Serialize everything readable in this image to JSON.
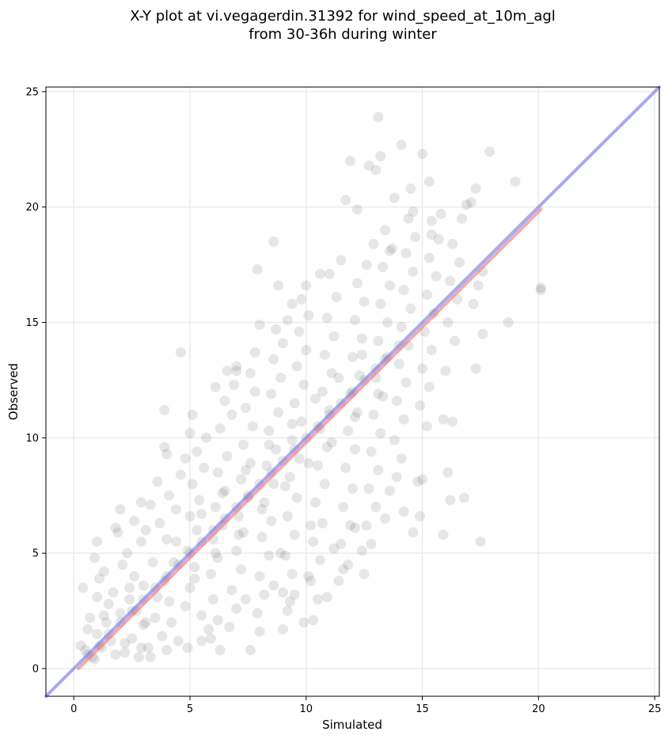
{
  "chart_data": {
    "type": "scatter",
    "title_line1": "X-Y plot at vi.vegagerdin.31392 for wind_speed_at_10m_agl",
    "title_line2": "from 30-36h during winter",
    "xlabel": "Simulated",
    "ylabel": "Observed",
    "xlim": [
      -1.2,
      25.2
    ],
    "ylim": [
      -1.2,
      25.2
    ],
    "xticks": [
      0,
      5,
      10,
      15,
      20,
      25
    ],
    "yticks": [
      0,
      5,
      10,
      15,
      20,
      25
    ],
    "grid": true,
    "point_color": "#555555",
    "identity_line": {
      "x": [
        -1.2,
        25.2
      ],
      "y": [
        -1.2,
        25.2
      ],
      "color": "#6e6ef0"
    },
    "fit_line": {
      "x": [
        0.2,
        20.1
      ],
      "y": [
        0.0,
        19.9
      ],
      "color": "#f07070"
    },
    "points": [
      [
        0.5,
        0.8
      ],
      [
        0.8,
        0.5
      ],
      [
        1.0,
        1.5
      ],
      [
        1.2,
        0.9
      ],
      [
        1.4,
        2.0
      ],
      [
        1.6,
        1.2
      ],
      [
        1.8,
        0.6
      ],
      [
        2.0,
        2.4
      ],
      [
        0.6,
        1.7
      ],
      [
        1.0,
        3.1
      ],
      [
        1.1,
        3.9
      ],
      [
        0.9,
        4.8
      ],
      [
        1.0,
        5.5
      ],
      [
        1.5,
        2.8
      ],
      [
        1.3,
        4.2
      ],
      [
        0.4,
        3.5
      ],
      [
        0.7,
        2.2
      ],
      [
        0.3,
        1.0
      ],
      [
        0.9,
        0.4
      ],
      [
        1.7,
        3.3
      ],
      [
        2.2,
        0.7
      ],
      [
        2.5,
        1.3
      ],
      [
        2.8,
        0.5
      ],
      [
        3.0,
        1.9
      ],
      [
        2.4,
        3.0
      ],
      [
        2.7,
        2.5
      ],
      [
        3.2,
        0.9
      ],
      [
        2.1,
        4.5
      ],
      [
        2.6,
        4.0
      ],
      [
        3.0,
        3.6
      ],
      [
        2.3,
        5.0
      ],
      [
        2.9,
        5.5
      ],
      [
        1.9,
        5.9
      ],
      [
        1.8,
        6.1
      ],
      [
        2.6,
        6.4
      ],
      [
        3.3,
        7.1
      ],
      [
        2.9,
        7.2
      ],
      [
        3.5,
        2.2
      ],
      [
        3.6,
        3.1
      ],
      [
        3.8,
        1.4
      ],
      [
        4.0,
        0.8
      ],
      [
        4.2,
        2.0
      ],
      [
        3.9,
        3.8
      ],
      [
        4.3,
        4.6
      ],
      [
        4.0,
        5.6
      ],
      [
        3.7,
        6.3
      ],
      [
        4.4,
        6.9
      ],
      [
        4.1,
        7.5
      ],
      [
        3.6,
        8.1
      ],
      [
        4.6,
        8.4
      ],
      [
        4.8,
        9.1
      ],
      [
        3.9,
        9.6
      ],
      [
        4.6,
        13.7
      ],
      [
        3.9,
        11.2
      ],
      [
        4.5,
        1.2
      ],
      [
        4.8,
        2.7
      ],
      [
        5.0,
        3.5
      ],
      [
        5.2,
        4.4
      ],
      [
        4.9,
        5.1
      ],
      [
        5.3,
        6.0
      ],
      [
        5.0,
        6.6
      ],
      [
        5.4,
        7.3
      ],
      [
        5.1,
        8.0
      ],
      [
        5.6,
        8.7
      ],
      [
        5.3,
        9.4
      ],
      [
        5.0,
        10.2
      ],
      [
        5.7,
        10.0
      ],
      [
        5.8,
        1.7
      ],
      [
        5.5,
        2.3
      ],
      [
        6.0,
        3.0
      ],
      [
        5.9,
        4.1
      ],
      [
        6.2,
        4.8
      ],
      [
        6.0,
        5.6
      ],
      [
        6.4,
        6.2
      ],
      [
        6.1,
        7.0
      ],
      [
        6.5,
        7.7
      ],
      [
        6.2,
        8.5
      ],
      [
        6.6,
        9.2
      ],
      [
        6.3,
        10.4
      ],
      [
        6.8,
        11.0
      ],
      [
        6.5,
        11.6
      ],
      [
        6.9,
        12.3
      ],
      [
        6.6,
        12.9
      ],
      [
        7.0,
        13.1
      ],
      [
        6.3,
        0.8
      ],
      [
        6.7,
        1.8
      ],
      [
        7.0,
        2.6
      ],
      [
        6.8,
        3.4
      ],
      [
        7.2,
        4.3
      ],
      [
        7.0,
        5.1
      ],
      [
        7.3,
        5.9
      ],
      [
        7.1,
        6.6
      ],
      [
        7.5,
        7.4
      ],
      [
        7.2,
        8.2
      ],
      [
        7.6,
        8.9
      ],
      [
        7.3,
        9.7
      ],
      [
        7.7,
        10.5
      ],
      [
        7.4,
        11.3
      ],
      [
        7.8,
        12.0
      ],
      [
        7.6,
        12.8
      ],
      [
        7.9,
        17.3
      ],
      [
        7.8,
        13.7
      ],
      [
        7.6,
        0.8
      ],
      [
        8.0,
        1.6
      ],
      [
        7.9,
        2.4
      ],
      [
        8.2,
        3.2
      ],
      [
        8.0,
        4.0
      ],
      [
        8.4,
        4.9
      ],
      [
        8.1,
        5.7
      ],
      [
        8.5,
        6.4
      ],
      [
        8.2,
        7.2
      ],
      [
        8.6,
        8.0
      ],
      [
        8.3,
        8.8
      ],
      [
        8.7,
        9.5
      ],
      [
        8.4,
        10.3
      ],
      [
        8.8,
        11.1
      ],
      [
        8.5,
        11.9
      ],
      [
        8.9,
        12.6
      ],
      [
        8.6,
        13.4
      ],
      [
        9.0,
        14.1
      ],
      [
        8.7,
        14.7
      ],
      [
        8.6,
        18.5
      ],
      [
        8.8,
        16.6
      ],
      [
        9.0,
        1.7
      ],
      [
        9.2,
        2.5
      ],
      [
        9.0,
        3.3
      ],
      [
        9.4,
        4.1
      ],
      [
        9.1,
        4.9
      ],
      [
        9.5,
        5.8
      ],
      [
        9.2,
        6.6
      ],
      [
        9.6,
        7.4
      ],
      [
        9.3,
        8.3
      ],
      [
        9.7,
        9.1
      ],
      [
        9.4,
        9.9
      ],
      [
        9.8,
        10.7
      ],
      [
        9.5,
        11.5
      ],
      [
        9.9,
        12.3
      ],
      [
        9.6,
        13.1
      ],
      [
        10.0,
        13.8
      ],
      [
        9.7,
        14.6
      ],
      [
        10.1,
        15.3
      ],
      [
        9.8,
        16.0
      ],
      [
        9.4,
        15.8
      ],
      [
        9.9,
        2.0
      ],
      [
        10.3,
        2.1
      ],
      [
        10.5,
        3.0
      ],
      [
        10.2,
        3.8
      ],
      [
        10.6,
        4.7
      ],
      [
        10.3,
        5.5
      ],
      [
        10.7,
        6.3
      ],
      [
        10.4,
        7.2
      ],
      [
        10.8,
        8.0
      ],
      [
        10.5,
        8.8
      ],
      [
        10.9,
        9.6
      ],
      [
        10.6,
        10.4
      ],
      [
        11.0,
        11.2
      ],
      [
        10.7,
        12.0
      ],
      [
        11.1,
        12.8
      ],
      [
        10.8,
        13.6
      ],
      [
        11.2,
        14.4
      ],
      [
        10.9,
        15.2
      ],
      [
        11.3,
        16.1
      ],
      [
        11.0,
        17.1
      ],
      [
        11.5,
        17.7
      ],
      [
        11.7,
        20.3
      ],
      [
        11.4,
        3.8
      ],
      [
        11.8,
        4.5
      ],
      [
        11.5,
        5.4
      ],
      [
        11.9,
        6.2
      ],
      [
        11.6,
        7.0
      ],
      [
        12.0,
        7.8
      ],
      [
        11.7,
        8.7
      ],
      [
        12.1,
        9.5
      ],
      [
        11.8,
        10.3
      ],
      [
        12.2,
        11.1
      ],
      [
        11.9,
        11.9
      ],
      [
        12.3,
        12.7
      ],
      [
        12.0,
        13.5
      ],
      [
        12.4,
        14.3
      ],
      [
        12.1,
        15.1
      ],
      [
        12.5,
        15.9
      ],
      [
        12.2,
        16.7
      ],
      [
        12.6,
        17.5
      ],
      [
        11.9,
        22.0
      ],
      [
        12.2,
        19.9
      ],
      [
        12.5,
        4.1
      ],
      [
        12.8,
        5.4
      ],
      [
        12.6,
        6.2
      ],
      [
        13.0,
        7.0
      ],
      [
        12.7,
        7.8
      ],
      [
        13.1,
        8.6
      ],
      [
        12.8,
        9.4
      ],
      [
        13.2,
        10.2
      ],
      [
        12.9,
        11.0
      ],
      [
        13.3,
        11.8
      ],
      [
        13.0,
        12.6
      ],
      [
        13.4,
        13.4
      ],
      [
        13.1,
        14.2
      ],
      [
        13.5,
        15.0
      ],
      [
        13.2,
        15.8
      ],
      [
        13.6,
        16.6
      ],
      [
        13.3,
        17.4
      ],
      [
        13.7,
        18.2
      ],
      [
        13.4,
        19.0
      ],
      [
        13.8,
        20.4
      ],
      [
        12.7,
        21.8
      ],
      [
        13.0,
        21.6
      ],
      [
        13.1,
        23.9
      ],
      [
        13.2,
        22.2
      ],
      [
        14.1,
        22.7
      ],
      [
        13.9,
        8.3
      ],
      [
        14.1,
        9.1
      ],
      [
        13.8,
        9.9
      ],
      [
        14.2,
        10.8
      ],
      [
        13.9,
        11.6
      ],
      [
        14.3,
        12.4
      ],
      [
        14.0,
        13.2
      ],
      [
        14.4,
        14.0
      ],
      [
        14.1,
        14.8
      ],
      [
        14.5,
        15.6
      ],
      [
        14.2,
        16.4
      ],
      [
        14.6,
        17.2
      ],
      [
        14.3,
        18.0
      ],
      [
        14.7,
        18.7
      ],
      [
        14.4,
        19.5
      ],
      [
        14.5,
        20.8
      ],
      [
        14.8,
        8.1
      ],
      [
        15.0,
        8.2
      ],
      [
        14.9,
        6.6
      ],
      [
        14.6,
        5.9
      ],
      [
        15.2,
        10.5
      ],
      [
        14.9,
        11.4
      ],
      [
        15.3,
        12.2
      ],
      [
        15.0,
        13.0
      ],
      [
        15.4,
        13.8
      ],
      [
        15.1,
        14.6
      ],
      [
        15.5,
        15.4
      ],
      [
        15.2,
        16.2
      ],
      [
        15.6,
        17.0
      ],
      [
        15.3,
        17.8
      ],
      [
        15.7,
        18.6
      ],
      [
        15.4,
        19.4
      ],
      [
        15.8,
        19.7
      ],
      [
        15.0,
        22.3
      ],
      [
        15.3,
        21.1
      ],
      [
        15.9,
        10.8
      ],
      [
        16.3,
        10.7
      ],
      [
        16.1,
        8.5
      ],
      [
        16.2,
        7.3
      ],
      [
        15.9,
        5.8
      ],
      [
        16.0,
        12.9
      ],
      [
        16.4,
        14.2
      ],
      [
        16.1,
        15.0
      ],
      [
        16.5,
        16.0
      ],
      [
        16.2,
        16.8
      ],
      [
        16.6,
        17.6
      ],
      [
        16.3,
        18.4
      ],
      [
        16.9,
        20.1
      ],
      [
        17.1,
        20.2
      ],
      [
        17.3,
        20.8
      ],
      [
        16.8,
        7.4
      ],
      [
        17.2,
        15.8
      ],
      [
        17.4,
        16.6
      ],
      [
        17.6,
        14.5
      ],
      [
        17.3,
        13.0
      ],
      [
        17.5,
        5.5
      ],
      [
        17.9,
        22.4
      ],
      [
        18.7,
        15.0
      ],
      [
        19.0,
        21.1
      ],
      [
        20.1,
        16.4
      ],
      [
        20.1,
        16.5
      ],
      [
        17.6,
        17.2
      ],
      [
        0.6,
        0.6
      ],
      [
        1.1,
        1.0
      ],
      [
        1.5,
        1.5
      ],
      [
        2.0,
        2.0
      ],
      [
        2.5,
        2.5
      ],
      [
        3.0,
        3.0
      ],
      [
        3.5,
        3.5
      ],
      [
        4.0,
        4.0
      ],
      [
        4.5,
        4.5
      ],
      [
        5.0,
        5.0
      ],
      [
        5.5,
        5.5
      ],
      [
        6.0,
        6.0
      ],
      [
        6.5,
        6.5
      ],
      [
        7.0,
        7.0
      ],
      [
        7.5,
        7.5
      ],
      [
        8.0,
        8.0
      ],
      [
        8.5,
        8.5
      ],
      [
        9.0,
        9.0
      ],
      [
        9.5,
        9.5
      ],
      [
        10.0,
        10.0
      ],
      [
        10.5,
        10.5
      ],
      [
        11.0,
        11.0
      ],
      [
        11.5,
        11.5
      ],
      [
        12.0,
        12.0
      ],
      [
        12.5,
        12.5
      ],
      [
        13.0,
        13.0
      ],
      [
        13.5,
        13.5
      ],
      [
        14.0,
        14.0
      ],
      [
        2.2,
        1.1
      ],
      [
        3.1,
        2.0
      ],
      [
        4.1,
        2.9
      ],
      [
        5.2,
        3.9
      ],
      [
        6.1,
        5.0
      ],
      [
        7.1,
        5.8
      ],
      [
        8.1,
        6.9
      ],
      [
        9.1,
        7.9
      ],
      [
        10.1,
        8.9
      ],
      [
        11.1,
        9.8
      ],
      [
        12.1,
        10.9
      ],
      [
        13.1,
        11.9
      ],
      [
        1.3,
        2.3
      ],
      [
        2.4,
        3.5
      ],
      [
        3.4,
        4.6
      ],
      [
        4.4,
        5.5
      ],
      [
        5.5,
        6.7
      ],
      [
        6.4,
        7.6
      ],
      [
        7.4,
        8.6
      ],
      [
        8.4,
        9.7
      ],
      [
        9.4,
        10.6
      ],
      [
        10.4,
        11.7
      ],
      [
        11.4,
        12.6
      ],
      [
        12.4,
        13.6
      ],
      [
        6.2,
        2.1
      ],
      [
        7.4,
        3.0
      ],
      [
        8.6,
        3.6
      ],
      [
        9.3,
        2.9
      ],
      [
        10.1,
        4.0
      ],
      [
        5.5,
        1.2
      ],
      [
        3.3,
        0.5
      ],
      [
        2.9,
        0.9
      ],
      [
        4.9,
        0.9
      ],
      [
        5.9,
        1.3
      ],
      [
        2.0,
        6.9
      ],
      [
        3.1,
        6.0
      ],
      [
        4.0,
        9.3
      ],
      [
        5.1,
        11.0
      ],
      [
        6.1,
        12.2
      ],
      [
        7.0,
        12.9
      ],
      [
        8.0,
        14.9
      ],
      [
        9.2,
        15.1
      ],
      [
        10.0,
        16.6
      ],
      [
        10.6,
        17.1
      ],
      [
        12.9,
        18.4
      ],
      [
        13.6,
        18.1
      ],
      [
        14.6,
        19.8
      ],
      [
        15.4,
        18.8
      ],
      [
        16.7,
        19.5
      ],
      [
        12.1,
        6.1
      ],
      [
        11.2,
        5.2
      ],
      [
        10.2,
        6.2
      ],
      [
        9.5,
        3.2
      ],
      [
        8.9,
        5.0
      ],
      [
        13.4,
        6.5
      ],
      [
        12.4,
        5.1
      ],
      [
        13.6,
        7.7
      ],
      [
        14.2,
        6.8
      ],
      [
        11.6,
        4.3
      ],
      [
        10.9,
        3.1
      ]
    ]
  }
}
